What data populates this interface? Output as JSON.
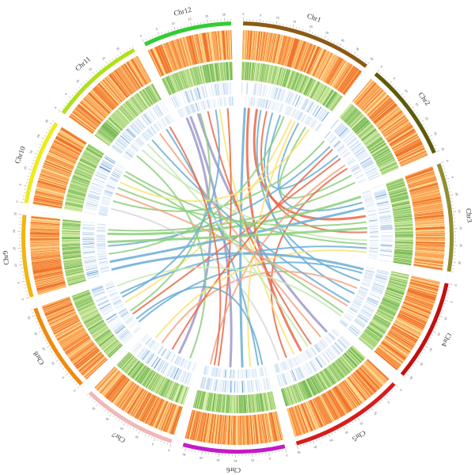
{
  "diagram": {
    "chromosomes": [
      {
        "label": "Chr1",
        "length": 40,
        "color": "#8b5a14"
      },
      {
        "label": "Chr2",
        "length": 30,
        "color": "#5c5c0a"
      },
      {
        "label": "Chr3",
        "length": 33,
        "color": "#8f8f2f"
      },
      {
        "label": "Chr4",
        "length": 31,
        "color": "#c41010"
      },
      {
        "label": "Chr5",
        "length": 35,
        "color": "#d91c1c"
      },
      {
        "label": "Chr6",
        "length": 31,
        "color": "#c21bc9"
      },
      {
        "label": "Chr7",
        "length": 29,
        "color": "#f0b8b8"
      },
      {
        "label": "Chr8",
        "length": 27,
        "color": "#f08a0c"
      },
      {
        "label": "Chr9",
        "length": 25,
        "color": "#f3b410"
      },
      {
        "label": "Chr10",
        "length": 26,
        "color": "#ecec1c"
      },
      {
        "label": "Chr11",
        "length": 29,
        "color": "#b0e01a"
      },
      {
        "label": "Chr12",
        "length": 27,
        "color": "#33cc33"
      }
    ],
    "tracks": [
      {
        "type": "heatmap",
        "palette": [
          "#fff4d0",
          "#fdd58a",
          "#fb9f4d",
          "#ee6a20"
        ]
      },
      {
        "type": "heatmap",
        "palette": [
          "#f5fbe0",
          "#d8edaa",
          "#a9d67a",
          "#6fb54e"
        ]
      },
      {
        "type": "heatmap",
        "palette": [
          "#ffffff",
          "#dce9f6",
          "#a9c9e8",
          "#3c7ec4"
        ]
      },
      {
        "type": "heatmap",
        "palette": [
          "#ffffff",
          "#e4eef8",
          "#bcd5ee",
          "#7aa9da"
        ]
      }
    ],
    "link_colors": [
      "#e8694a",
      "#6aaed6",
      "#9c9acb",
      "#8dcf7c",
      "#f9e37a",
      "#f4a582",
      "#c7e9b4",
      "#d9d9d9"
    ],
    "links": [
      {
        "from": [
          "Chr12",
          5
        ],
        "to": [
          "Chr6",
          18
        ],
        "color": "#9c9acb",
        "width": 3
      },
      {
        "from": [
          "Chr12",
          9
        ],
        "to": [
          "Chr5",
          4
        ],
        "color": "#9c9acb",
        "width": 3
      },
      {
        "from": [
          "Chr12",
          3
        ],
        "to": [
          "Chr7",
          10
        ],
        "color": "#9c9acb",
        "width": 3
      },
      {
        "from": [
          "Chr1",
          2
        ],
        "to": [
          "Chr6",
          12
        ],
        "color": "#6aaed6",
        "width": 3
      },
      {
        "from": [
          "Chr1",
          4
        ],
        "to": [
          "Chr5",
          20
        ],
        "color": "#e8694a",
        "width": 3
      },
      {
        "from": [
          "Chr1",
          8
        ],
        "to": [
          "Chr3",
          12
        ],
        "color": "#e8694a",
        "width": 3
      },
      {
        "from": [
          "Chr1",
          10
        ],
        "to": [
          "Chr4",
          8
        ],
        "color": "#6aaed6",
        "width": 2
      },
      {
        "from": [
          "Chr1",
          13
        ],
        "to": [
          "Chr3",
          20
        ],
        "color": "#e8694a",
        "width": 2
      },
      {
        "from": [
          "Chr1",
          16
        ],
        "to": [
          "Chr4",
          15
        ],
        "color": "#6aaed6",
        "width": 2
      },
      {
        "from": [
          "Chr1",
          20
        ],
        "to": [
          "Chr2",
          12
        ],
        "color": "#6aaed6",
        "width": 2
      },
      {
        "from": [
          "Chr1",
          22
        ],
        "to": [
          "Chr9",
          10
        ],
        "color": "#8dcf7c",
        "width": 2
      },
      {
        "from": [
          "Chr1",
          26
        ],
        "to": [
          "Chr8",
          15
        ],
        "color": "#f9e37a",
        "width": 2
      },
      {
        "from": [
          "Chr1",
          30
        ],
        "to": [
          "Chr3",
          5
        ],
        "color": "#6aaed6",
        "width": 2
      },
      {
        "from": [
          "Chr1",
          34
        ],
        "to": [
          "Chr2",
          24
        ],
        "color": "#8dcf7c",
        "width": 2
      },
      {
        "from": [
          "Chr2",
          2
        ],
        "to": [
          "Chr10",
          8
        ],
        "color": "#8dcf7c",
        "width": 2
      },
      {
        "from": [
          "Chr2",
          6
        ],
        "to": [
          "Chr9",
          14
        ],
        "color": "#6aaed6",
        "width": 2
      },
      {
        "from": [
          "Chr2",
          14
        ],
        "to": [
          "Chr8",
          8
        ],
        "color": "#e8694a",
        "width": 2
      },
      {
        "from": [
          "Chr2",
          20
        ],
        "to": [
          "Chr5",
          28
        ],
        "color": "#e8694a",
        "width": 2
      },
      {
        "from": [
          "Chr3",
          2
        ],
        "to": [
          "Chr9",
          20
        ],
        "color": "#8dcf7c",
        "width": 3
      },
      {
        "from": [
          "Chr3",
          8
        ],
        "to": [
          "Chr9",
          6
        ],
        "color": "#6aaed6",
        "width": 3
      },
      {
        "from": [
          "Chr3",
          15
        ],
        "to": [
          "Chr10",
          15
        ],
        "color": "#8dcf7c",
        "width": 2
      },
      {
        "from": [
          "Chr3",
          24
        ],
        "to": [
          "Chr11",
          8
        ],
        "color": "#c7e9b4",
        "width": 2
      },
      {
        "from": [
          "Chr3",
          28
        ],
        "to": [
          "Chr8",
          20
        ],
        "color": "#6aaed6",
        "width": 2
      },
      {
        "from": [
          "Chr4",
          4
        ],
        "to": [
          "Chr8",
          3
        ],
        "color": "#6aaed6",
        "width": 2
      },
      {
        "from": [
          "Chr4",
          12
        ],
        "to": [
          "Chr7",
          20
        ],
        "color": "#f4a582",
        "width": 2
      },
      {
        "from": [
          "Chr4",
          20
        ],
        "to": [
          "Chr11",
          15
        ],
        "color": "#6aaed6",
        "width": 2
      },
      {
        "from": [
          "Chr4",
          26
        ],
        "to": [
          "Chr10",
          22
        ],
        "color": "#8dcf7c",
        "width": 2
      },
      {
        "from": [
          "Chr5",
          8
        ],
        "to": [
          "Chr11",
          20
        ],
        "color": "#f4a582",
        "width": 2
      },
      {
        "from": [
          "Chr5",
          14
        ],
        "to": [
          "Chr12",
          14
        ],
        "color": "#e8694a",
        "width": 2
      },
      {
        "from": [
          "Chr5",
          24
        ],
        "to": [
          "Chr12",
          20
        ],
        "color": "#f9e37a",
        "width": 2
      },
      {
        "from": [
          "Chr5",
          32
        ],
        "to": [
          "Chr10",
          4
        ],
        "color": "#d9d9d9",
        "width": 2
      },
      {
        "from": [
          "Chr6",
          4
        ],
        "to": [
          "Chr11",
          24
        ],
        "color": "#6aaed6",
        "width": 2
      },
      {
        "from": [
          "Chr6",
          8
        ],
        "to": [
          "Chr1",
          28
        ],
        "color": "#f9e37a",
        "width": 2
      },
      {
        "from": [
          "Chr6",
          24
        ],
        "to": [
          "Chr12",
          24
        ],
        "color": "#e8694a",
        "width": 2
      },
      {
        "from": [
          "Chr6",
          28
        ],
        "to": [
          "Chr2",
          18
        ],
        "color": "#f4a582",
        "width": 2
      },
      {
        "from": [
          "Chr7",
          4
        ],
        "to": [
          "Chr11",
          4
        ],
        "color": "#8dcf7c",
        "width": 2
      },
      {
        "from": [
          "Chr7",
          14
        ],
        "to": [
          "Chr2",
          8
        ],
        "color": "#e8694a",
        "width": 2
      },
      {
        "from": [
          "Chr7",
          24
        ],
        "to": [
          "Chr3",
          30
        ],
        "color": "#f9e37a",
        "width": 2
      },
      {
        "from": [
          "Chr8",
          10
        ],
        "to": [
          "Chr12",
          10
        ],
        "color": "#8dcf7c",
        "width": 2
      },
      {
        "from": [
          "Chr8",
          24
        ],
        "to": [
          "Chr4",
          28
        ],
        "color": "#c7e9b4",
        "width": 2
      },
      {
        "from": [
          "Chr9",
          2
        ],
        "to": [
          "Chr4",
          2
        ],
        "color": "#6aaed6",
        "width": 3
      },
      {
        "from": [
          "Chr9",
          16
        ],
        "to": [
          "Chr3",
          18
        ],
        "color": "#8dcf7c",
        "width": 3
      },
      {
        "from": [
          "Chr9",
          22
        ],
        "to": [
          "Chr2",
          28
        ],
        "color": "#8dcf7c",
        "width": 2
      },
      {
        "from": [
          "Chr10",
          12
        ],
        "to": [
          "Chr4",
          22
        ],
        "color": "#f4a582",
        "width": 2
      },
      {
        "from": [
          "Chr10",
          18
        ],
        "to": [
          "Chr1",
          36
        ],
        "color": "#f9e37a",
        "width": 2
      },
      {
        "from": [
          "Chr11",
          12
        ],
        "to": [
          "Chr5",
          16
        ],
        "color": "#c7e9b4",
        "width": 2
      },
      {
        "from": [
          "Chr11",
          26
        ],
        "to": [
          "Chr6",
          26
        ],
        "color": "#e8694a",
        "width": 2
      },
      {
        "from": [
          "Chr12",
          18
        ],
        "to": [
          "Chr8",
          18
        ],
        "color": "#6aaed6",
        "width": 2
      },
      {
        "from": [
          "Chr10",
          24
        ],
        "to": [
          "Chr3",
          26
        ],
        "color": "#8dcf7c",
        "width": 2
      },
      {
        "from": [
          "Chr8",
          5
        ],
        "to": [
          "Chr6",
          2
        ],
        "color": "#6aaed6",
        "width": 2
      }
    ]
  }
}
